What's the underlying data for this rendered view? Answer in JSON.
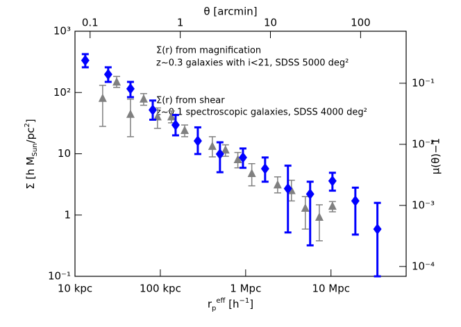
{
  "chart_data": {
    "type": "errorbar",
    "xlabel": [
      {
        "text": "r",
        "style": "base"
      },
      {
        "text": "p",
        "style": "sub"
      },
      {
        "text": "eff",
        "style": "sup"
      },
      {
        "text": " [h",
        "style": "base"
      },
      {
        "text": "−1",
        "style": "sup"
      },
      {
        "text": "]",
        "style": "base"
      }
    ],
    "ylabel": [
      {
        "text": "Σ [h M",
        "style": "base"
      },
      {
        "text": "Sun",
        "style": "sub"
      },
      {
        "text": "/pc",
        "style": "base"
      },
      {
        "text": "2",
        "style": "sup"
      },
      {
        "text": "]",
        "style": "base"
      }
    ],
    "x2label": "θ [arcmin]",
    "y2label": "μ(θ)−1",
    "log_scale": true,
    "xlim": [
      0.01,
      76
    ],
    "xticks": [
      {
        "value": 0.01,
        "label": "10 kpc"
      },
      {
        "value": 0.1,
        "label": "100 kpc"
      },
      {
        "value": 1,
        "label": "1 Mpc"
      },
      {
        "value": 10,
        "label": "10 Mpc"
      }
    ],
    "ylim": [
      0.1,
      1000
    ],
    "yticks": [
      {
        "value": 0.1,
        "label": "10⁻¹"
      },
      1,
      10,
      {
        "value": 100,
        "label": "10²"
      },
      {
        "value": 1000,
        "label": "10³"
      }
    ],
    "x2lim": [
      0.068,
      320
    ],
    "x2ticks": [
      0.1,
      1,
      10,
      100
    ],
    "y2lim": [
      6.9e-05,
      0.71
    ],
    "y2ticks": [
      {
        "value": 0.0001,
        "label": "10⁻⁴"
      },
      {
        "value": 0.001,
        "label": "10⁻³"
      },
      {
        "value": 0.01,
        "label": "10⁻²"
      },
      {
        "value": 0.1,
        "label": "10⁻¹"
      }
    ],
    "annotations": [
      {
        "text": "Σ(r) from magnification",
        "color": "#0000ff"
      },
      {
        "text": "z~0.3 galaxies with i<21, SDSS 5000 deg²",
        "color": "#0000ff"
      },
      {
        "text": "Σ(r) from shear",
        "color": "#888888"
      },
      {
        "text": "z~0.1 spectroscopic galaxies, SDSS 4000 deg²",
        "color": "#888888"
      }
    ],
    "series": [
      {
        "name": "shear",
        "color": "#808080",
        "marker": "triangle",
        "x": [
          0.0211,
          0.0308,
          0.0447,
          0.0638,
          0.0927,
          0.135,
          0.193,
          0.407,
          0.58,
          0.81,
          1.18,
          2.37,
          3.44,
          5.0,
          7.3,
          10.4
        ],
        "values": [
          80,
          148,
          44,
          78,
          40,
          40,
          24,
          13.2,
          11.5,
          8.0,
          4.75,
          3.1,
          2.5,
          1.29,
          0.92,
          1.39
        ],
        "upper": [
          131,
          183,
          78,
          96,
          56,
          50,
          29.5,
          19,
          14,
          10.5,
          6.9,
          4.2,
          3.7,
          2.0,
          1.47,
          1.66
        ],
        "lower": [
          28,
          121,
          19,
          62,
          26,
          32,
          19,
          8.9,
          9.1,
          5.9,
          3.0,
          2.3,
          1.7,
          0.59,
          0.38,
          1.13
        ]
      },
      {
        "name": "magnification",
        "color": "#0000ff",
        "marker": "diamond",
        "x": [
          0.0132,
          0.0245,
          0.0447,
          0.0815,
          0.151,
          0.275,
          0.5,
          0.93,
          1.69,
          3.13,
          5.7,
          10.4,
          19.3,
          35
        ],
        "values": [
          334,
          198,
          115,
          52,
          29.5,
          16.2,
          9.9,
          8.7,
          5.7,
          2.7,
          2.2,
          3.6,
          1.7,
          0.59
        ],
        "upper": [
          423,
          258,
          149,
          74,
          43,
          27,
          15.4,
          12.2,
          8.7,
          6.4,
          3.5,
          4.9,
          2.8,
          1.58
        ],
        "lower": [
          258,
          149,
          84,
          36,
          20,
          9.9,
          5.0,
          5.9,
          3.5,
          0.52,
          0.32,
          2.5,
          0.48,
          0.1
        ]
      }
    ]
  }
}
